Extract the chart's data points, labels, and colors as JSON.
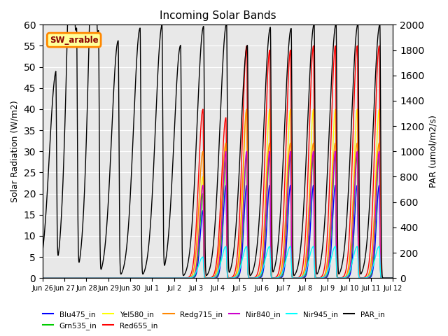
{
  "title": "Incoming Solar Bands",
  "ylabel_left": "Solar Radiation (W/m2)",
  "ylabel_right": "PAR (umol/m2/s)",
  "ylim_left": [
    0,
    60
  ],
  "ylim_right": [
    0,
    2000
  ],
  "bg_color": "#e8e8e8",
  "annotation_text": "SW_arable",
  "annotation_color": "#8b0000",
  "annotation_bg": "#ffff99",
  "annotation_border": "#ff8800",
  "series_colors": {
    "Blu475_in": "#0000ff",
    "Grn535_in": "#00cc00",
    "Yel580_in": "#ffff00",
    "Red655_in": "#ff0000",
    "Redg715_in": "#ff8800",
    "Nir840_in": "#cc00cc",
    "Nir945_in": "#00ffff",
    "PAR_in": "#000000"
  },
  "xtick_labels": [
    "Jun 26",
    "Jun 27",
    "Jun 28",
    "Jun 29",
    "Jun 30",
    "Jul 1",
    "Jul 2",
    "Jul 3",
    "Jul 4",
    "Jul 5",
    "Jul 6",
    "Jul 7",
    "Jul 8",
    "Jul 9",
    "Jul 10",
    "Jul 11",
    "Jul 12"
  ],
  "yticks_left": [
    0,
    5,
    10,
    15,
    20,
    25,
    30,
    35,
    40,
    45,
    50,
    55,
    60
  ],
  "yticks_right": [
    0,
    200,
    400,
    600,
    800,
    1000,
    1200,
    1400,
    1600,
    1800,
    2000
  ],
  "total_days": 16,
  "pts_per_day": 480
}
